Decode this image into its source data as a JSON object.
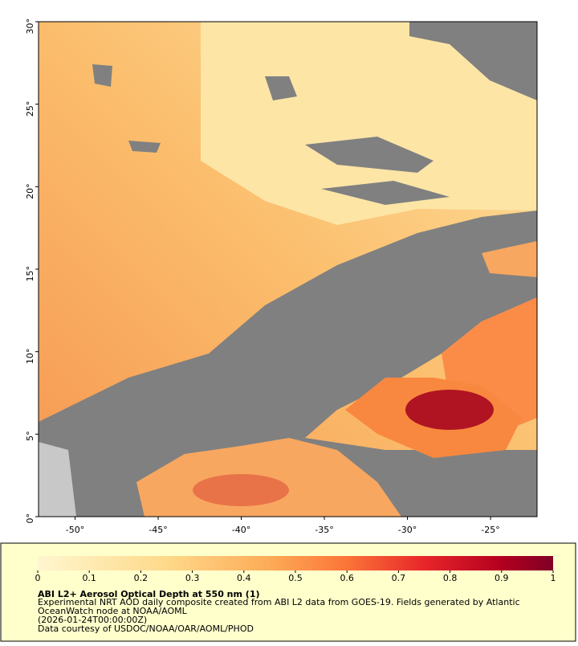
{
  "map": {
    "lon_range": [
      -52.2,
      -22.2
    ],
    "lat_range": [
      0,
      30
    ],
    "lon_ticks": [
      {
        "value": -50,
        "label": "-50°"
      },
      {
        "value": -45,
        "label": "-45°"
      },
      {
        "value": -40,
        "label": "-40°"
      },
      {
        "value": -35,
        "label": "-35°"
      },
      {
        "value": -30,
        "label": "-30°"
      },
      {
        "value": -25,
        "label": "-25°"
      }
    ],
    "lat_ticks": [
      {
        "value": 0,
        "label": "0°"
      },
      {
        "value": 5,
        "label": "5°"
      },
      {
        "value": 10,
        "label": "10°"
      },
      {
        "value": 15,
        "label": "15°"
      },
      {
        "value": 20,
        "label": "20°"
      },
      {
        "value": 25,
        "label": "25°"
      },
      {
        "value": 30,
        "label": "30°"
      }
    ]
  },
  "colorbar": {
    "range": [
      0,
      1
    ],
    "ticks": [
      0,
      0.1,
      0.2,
      0.3,
      0.4,
      0.5,
      0.6,
      0.7,
      0.8,
      0.9,
      1
    ]
  },
  "caption": {
    "title": "ABI L2+ Aerosol Optical Depth at 550 nm (1)",
    "lines": [
      "Experimental NRT AOD daily composite created from ABI L2 data from GOES-19. Fields generated by Atlantic",
      "OceanWatch node at NOAA/AOML",
      "(2026-01-24T00:00:00Z)",
      "Data courtesy of USDOC/NOAA/OAR/AOML/PHOD"
    ]
  }
}
